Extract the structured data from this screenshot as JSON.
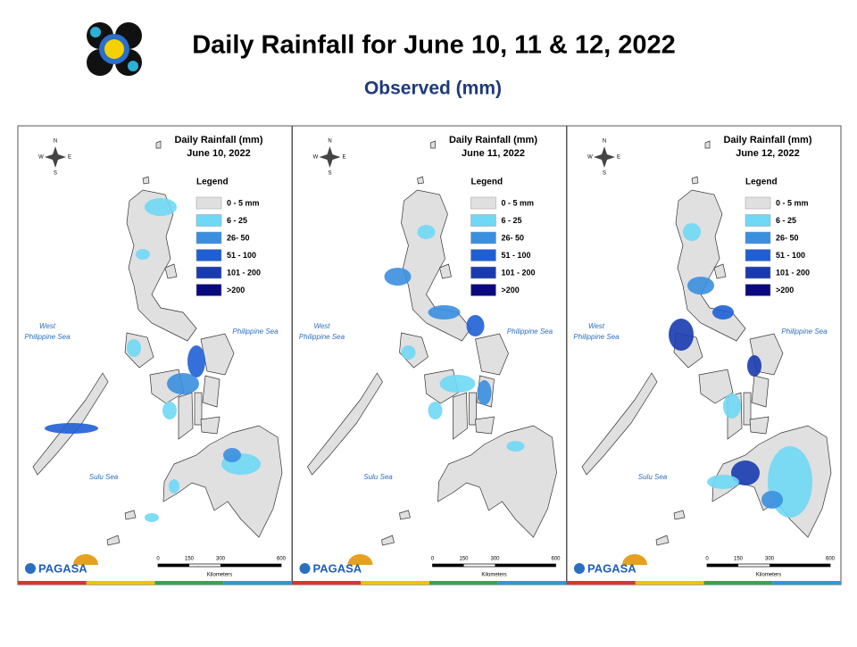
{
  "header": {
    "title": "Daily Rainfall for June 10, 11 & 12, 2022",
    "subtitle": "Observed (mm)"
  },
  "panels": [
    {
      "title": "Daily Rainfall (mm)",
      "date": "June 10, 2022"
    },
    {
      "title": "Daily Rainfall (mm)",
      "date": "June 11, 2022"
    },
    {
      "title": "Daily Rainfall (mm)",
      "date": "June 12, 2022"
    }
  ],
  "legend": {
    "title": "Legend",
    "items": [
      {
        "label": "0 - 5 mm",
        "color": "#e0e0e0"
      },
      {
        "label": "6 - 25",
        "color": "#6fd8f5"
      },
      {
        "label": "26- 50",
        "color": "#3a8fe0"
      },
      {
        "label": "51 - 100",
        "color": "#1f5fd6"
      },
      {
        "label": "101 - 200",
        "color": "#1a3bb0"
      },
      {
        "label": ">200",
        "color": "#0a0a80"
      }
    ]
  },
  "compass": {
    "n": "N",
    "w": "W",
    "e": "E",
    "s": "S"
  },
  "seas": {
    "west_line1": "West",
    "west_line2": "Philippine Sea",
    "east": "Philippine Sea",
    "sulu": "Sulu Sea"
  },
  "scale": {
    "ticks": [
      "0",
      "150",
      "300",
      "600"
    ],
    "unit": "Kilometers"
  },
  "logo": {
    "name": "PAGASA"
  }
}
